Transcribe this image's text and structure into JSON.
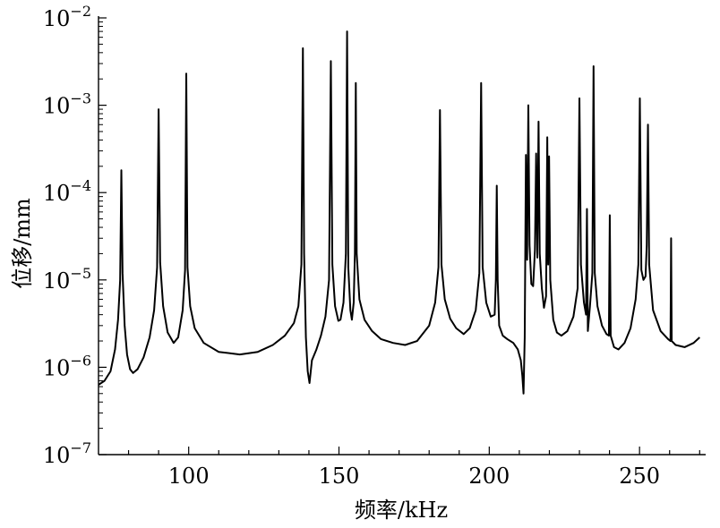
{
  "chart_data": {
    "type": "line",
    "title": "",
    "xlabel": "频率/kHz",
    "ylabel": "位移/mm",
    "xlim": [
      70,
      272
    ],
    "ylim": [
      1e-07,
      0.01
    ],
    "yscale": "log",
    "grid": false,
    "x_ticks": [
      {
        "value": 100,
        "label": "100"
      },
      {
        "value": 150,
        "label": "150"
      },
      {
        "value": 200,
        "label": "200"
      },
      {
        "value": 250,
        "label": "250"
      }
    ],
    "y_ticks": [
      {
        "value": 1e-07,
        "base": "10",
        "exp": "−7"
      },
      {
        "value": 1e-06,
        "base": "10",
        "exp": "−6"
      },
      {
        "value": 1e-05,
        "base": "10",
        "exp": "−5"
      },
      {
        "value": 0.0001,
        "base": "10",
        "exp": "−4"
      },
      {
        "value": 0.001,
        "base": "10",
        "exp": "−3"
      },
      {
        "value": 0.01,
        "base": "10",
        "exp": "−2"
      }
    ],
    "series": [
      {
        "color": "#000000",
        "points": [
          [
            70.0,
            6.3e-07
          ],
          [
            72.0,
            7e-07
          ],
          [
            74.0,
            9e-07
          ],
          [
            75.5,
            1.6e-06
          ],
          [
            76.5,
            3.5e-06
          ],
          [
            77.2,
            1e-05
          ],
          [
            77.6,
            0.00018
          ],
          [
            78.0,
            1.2e-05
          ],
          [
            78.7,
            3e-06
          ],
          [
            79.5,
            1.4e-06
          ],
          [
            80.5,
            9.5e-07
          ],
          [
            81.5,
            8.6e-07
          ],
          [
            83.0,
            9.5e-07
          ],
          [
            85.0,
            1.3e-06
          ],
          [
            87.0,
            2.2e-06
          ],
          [
            88.5,
            4.5e-06
          ],
          [
            89.5,
            1.4e-05
          ],
          [
            90.0,
            0.0009
          ],
          [
            90.5,
            1.6e-05
          ],
          [
            91.5,
            5e-06
          ],
          [
            93.0,
            2.5e-06
          ],
          [
            95.0,
            1.9e-06
          ],
          [
            96.5,
            2.2e-06
          ],
          [
            98.0,
            4.5e-06
          ],
          [
            98.8,
            1.3e-05
          ],
          [
            99.2,
            0.0023
          ],
          [
            99.6,
            1.4e-05
          ],
          [
            100.5,
            5e-06
          ],
          [
            102.0,
            2.8e-06
          ],
          [
            105.0,
            1.9e-06
          ],
          [
            110.0,
            1.5e-06
          ],
          [
            117.0,
            1.4e-06
          ],
          [
            123.0,
            1.5e-06
          ],
          [
            128.0,
            1.8e-06
          ],
          [
            132.0,
            2.3e-06
          ],
          [
            135.0,
            3.2e-06
          ],
          [
            136.5,
            5e-06
          ],
          [
            137.5,
            1.5e-05
          ],
          [
            138.0,
            0.0045
          ],
          [
            138.4,
            2e-05
          ],
          [
            139.0,
            2.2e-06
          ],
          [
            139.6,
            9e-07
          ],
          [
            140.2,
            6.6e-07
          ],
          [
            141.0,
            1.2e-06
          ],
          [
            142.5,
            1.6e-06
          ],
          [
            144.0,
            2.3e-06
          ],
          [
            145.5,
            3.8e-06
          ],
          [
            146.7,
            1e-05
          ],
          [
            147.3,
            0.0032
          ],
          [
            147.8,
            1.5e-05
          ],
          [
            148.7,
            5e-06
          ],
          [
            149.8,
            3.4e-06
          ],
          [
            150.5,
            3.5e-06
          ],
          [
            151.5,
            5.5e-06
          ],
          [
            152.3,
            2e-05
          ],
          [
            152.7,
            0.007
          ],
          [
            153.1,
            1.4e-05
          ],
          [
            153.8,
            4.5e-06
          ],
          [
            154.3,
            3.5e-06
          ],
          [
            154.9,
            5.5e-06
          ],
          [
            155.3,
            2e-05
          ],
          [
            155.6,
            0.0018
          ],
          [
            155.9,
            2e-05
          ],
          [
            156.8,
            6e-06
          ],
          [
            158.5,
            3.5e-06
          ],
          [
            161.0,
            2.6e-06
          ],
          [
            164.0,
            2.1e-06
          ],
          [
            168.0,
            1.9e-06
          ],
          [
            172.0,
            1.8e-06
          ],
          [
            176.0,
            2e-06
          ],
          [
            180.0,
            3e-06
          ],
          [
            182.0,
            5.5e-06
          ],
          [
            183.1,
            1.4e-05
          ],
          [
            183.6,
            0.00088
          ],
          [
            184.1,
            1.5e-05
          ],
          [
            185.2,
            6e-06
          ],
          [
            187.0,
            3.6e-06
          ],
          [
            189.0,
            2.8e-06
          ],
          [
            191.5,
            2.4e-06
          ],
          [
            193.5,
            2.8e-06
          ],
          [
            195.5,
            4.5e-06
          ],
          [
            196.7,
            1.2e-05
          ],
          [
            197.3,
            0.0018
          ],
          [
            197.8,
            1.4e-05
          ],
          [
            199.0,
            5.5e-06
          ],
          [
            200.5,
            3.8e-06
          ],
          [
            201.8,
            4e-06
          ],
          [
            202.2,
            1e-05
          ],
          [
            202.5,
            0.00012
          ],
          [
            202.8,
            1e-05
          ],
          [
            203.3,
            3e-06
          ],
          [
            204.5,
            2.3e-06
          ],
          [
            206.0,
            2.1e-06
          ],
          [
            208.0,
            1.9e-06
          ],
          [
            209.5,
            1.6e-06
          ],
          [
            210.5,
            1.2e-06
          ],
          [
            211.0,
            8e-07
          ],
          [
            211.4,
            5e-07
          ],
          [
            211.8,
            2.2e-06
          ],
          [
            212.2,
            0.00027
          ],
          [
            212.6,
            1.7e-05
          ],
          [
            213.0,
            0.001
          ],
          [
            213.4,
            2.5e-05
          ],
          [
            214.0,
            9e-06
          ],
          [
            214.6,
            8.5e-06
          ],
          [
            215.2,
            2.2e-05
          ],
          [
            215.6,
            0.00028
          ],
          [
            216.0,
            1.8e-05
          ],
          [
            216.4,
            0.00065
          ],
          [
            216.8,
            2e-05
          ],
          [
            217.5,
            8e-06
          ],
          [
            218.2,
            4.8e-06
          ],
          [
            218.9,
            6.5e-06
          ],
          [
            219.3,
            0.00043
          ],
          [
            219.6,
            1.5e-05
          ],
          [
            219.9,
            0.00026
          ],
          [
            220.3,
            1e-05
          ],
          [
            221.3,
            3.5e-06
          ],
          [
            222.5,
            2.5e-06
          ],
          [
            224.0,
            2.3e-06
          ],
          [
            226.0,
            2.6e-06
          ],
          [
            228.0,
            3.8e-06
          ],
          [
            229.4,
            8e-06
          ],
          [
            230.0,
            0.0012
          ],
          [
            230.5,
            1.5e-05
          ],
          [
            231.5,
            5.5e-06
          ],
          [
            232.2,
            4e-06
          ],
          [
            232.5,
            6.5e-05
          ],
          [
            232.8,
            2.6e-06
          ],
          [
            233.5,
            5e-06
          ],
          [
            234.3,
            1.2e-05
          ],
          [
            234.7,
            0.0028
          ],
          [
            235.1,
            1.2e-05
          ],
          [
            236.0,
            5e-06
          ],
          [
            237.5,
            3e-06
          ],
          [
            239.0,
            2.4e-06
          ],
          [
            239.8,
            2.3e-06
          ],
          [
            240.1,
            5.5e-05
          ],
          [
            240.4,
            2.3e-06
          ],
          [
            241.5,
            1.7e-06
          ],
          [
            243.0,
            1.6e-06
          ],
          [
            245.0,
            1.9e-06
          ],
          [
            247.0,
            2.8e-06
          ],
          [
            248.7,
            6e-06
          ],
          [
            249.6,
            1.5e-05
          ],
          [
            250.1,
            0.0012
          ],
          [
            250.6,
            1.3e-05
          ],
          [
            251.3,
            1e-05
          ],
          [
            252.0,
            1.1e-05
          ],
          [
            252.4,
            2.5e-05
          ],
          [
            252.8,
            0.0006
          ],
          [
            253.2,
            1.5e-05
          ],
          [
            254.5,
            4.5e-06
          ],
          [
            257.0,
            2.6e-06
          ],
          [
            259.5,
            2.1e-06
          ],
          [
            260.3,
            2e-06
          ],
          [
            260.5,
            3e-05
          ],
          [
            260.7,
            2e-06
          ],
          [
            262.0,
            1.8e-06
          ],
          [
            265.0,
            1.7e-06
          ],
          [
            268.0,
            1.9e-06
          ],
          [
            270.0,
            2.2e-06
          ]
        ]
      }
    ]
  }
}
